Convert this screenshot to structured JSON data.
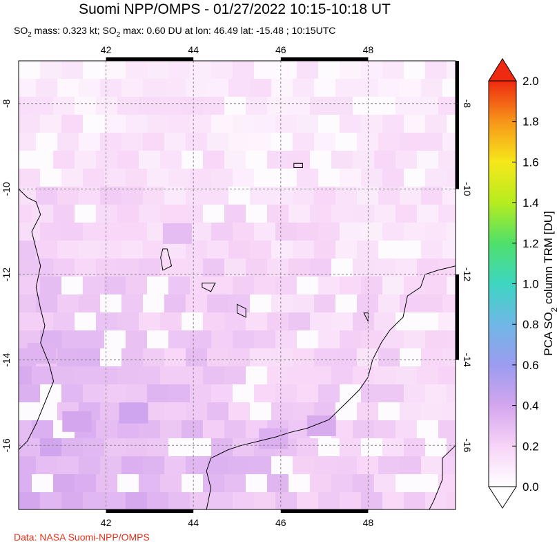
{
  "title": "Suomi NPP/OMPS - 01/27/2022 10:15-10:18 UT",
  "subtitle": {
    "so2_prefix": "SO",
    "so2_sub": "2",
    "mass_text": " mass: 0.323 kt; SO",
    "max_sub": "2",
    "max_text": " max: 0.60 DU at lon: 46.49 lat: -15.48 ; 10:15UTC"
  },
  "credit": "Data: NASA Suomi-NPP/OMPS",
  "colors": {
    "credit": "#e8331c",
    "coast": "#000000",
    "grid": "#888888"
  },
  "chart_data": {
    "type": "heatmap",
    "x_axis": {
      "min": 40,
      "max": 50,
      "ticks": [
        "42",
        "44",
        "46",
        "48"
      ]
    },
    "y_axis": {
      "min": -17.5,
      "max": -7,
      "ticks": [
        "-8",
        "-10",
        "-12",
        "-14",
        "-16"
      ]
    },
    "grid": true,
    "colorbar": {
      "label_prefix": "PCA SO",
      "label_sub": "2",
      "label_suffix": " column TRM [DU]",
      "min": 0.0,
      "max": 2.0,
      "ticks": [
        "0.0",
        "0.2",
        "0.4",
        "0.6",
        "0.8",
        "1.0",
        "1.2",
        "1.4",
        "1.6",
        "1.8",
        "2.0"
      ],
      "gradient": [
        "#ffffff",
        "#f7d4f7",
        "#d4a6ee",
        "#9c9cf0",
        "#6fb7e6",
        "#3ed6c2",
        "#4fe06a",
        "#b6ec1e",
        "#f6e81a",
        "#f7951a",
        "#ee2a10"
      ]
    },
    "max_value_du": 0.6,
    "max_location": {
      "lon": 46.49,
      "lat": -15.48
    }
  }
}
